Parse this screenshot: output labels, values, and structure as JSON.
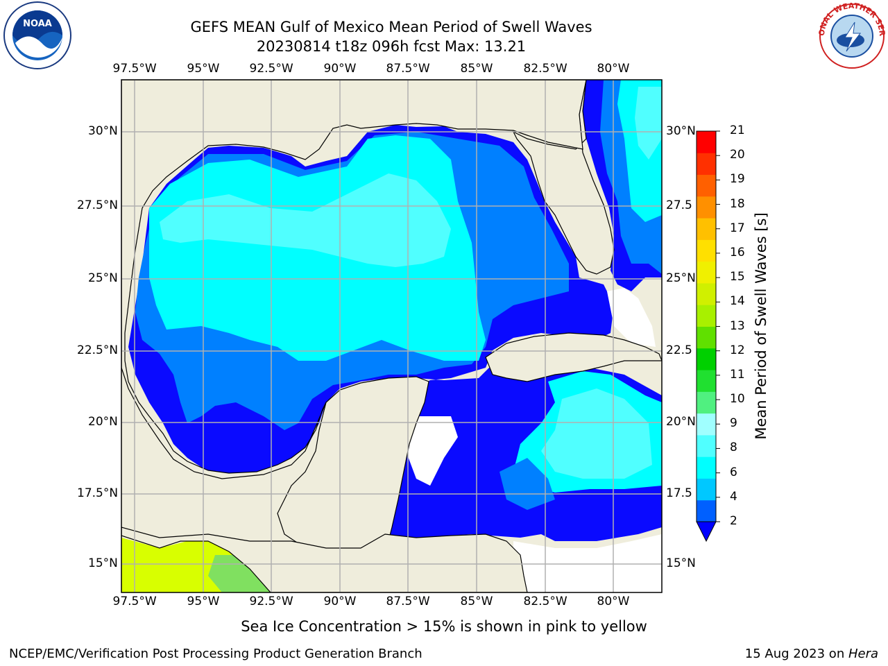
{
  "title": {
    "line1": "GEFS MEAN Gulf of Mexico Mean Period of Swell Waves",
    "line2": "20230814 t18z 096h fcst   Max: 13.21"
  },
  "logos": {
    "left": "noaa-logo",
    "right": "nws-logo",
    "nws_text": "NATIONAL WEATHER SERVICE"
  },
  "axes": {
    "lon_labels": [
      "97.5°W",
      "95°W",
      "92.5°W",
      "90°W",
      "87.5°W",
      "85°W",
      "82.5°W",
      "80°W"
    ],
    "lat_labels_left": [
      "30°N",
      "27.5°N",
      "25°N",
      "22.5°N",
      "20°N",
      "17.5°N",
      "15°N"
    ],
    "lat_labels_right": [
      "30°N",
      "27.5",
      "25°N",
      "22.5",
      "20°N",
      "17.5",
      "15°N"
    ]
  },
  "colorbar": {
    "label": "Mean Period of Swell Waves [s]",
    "ticks": [
      "2",
      "4",
      "6",
      "8",
      "9",
      "10",
      "11",
      "12",
      "13",
      "14",
      "15",
      "16",
      "17",
      "18",
      "19",
      "20",
      "21"
    ],
    "colors": [
      "#0060ff",
      "#00c8ff",
      "#00ffff",
      "#50ffff",
      "#a0ffff",
      "#50f080",
      "#20e030",
      "#00d000",
      "#60e000",
      "#a8f000",
      "#d0f000",
      "#f0f000",
      "#ffe000",
      "#ffc000",
      "#ff9000",
      "#ff6000",
      "#ff3000",
      "#ff0000"
    ],
    "under_color": "#0000ff"
  },
  "map_colors": {
    "land": "#efeddc",
    "deep_blue": "#0a0aff",
    "mid_blue": "#0080ff",
    "cyan": "#00ffff",
    "light_cyan": "#50ffff",
    "yellow_green": "#d8ff00",
    "green": "#80e060"
  },
  "footer": {
    "subtitle": "Sea Ice Concentration > 15% is shown in pink to yellow",
    "credit_left": "NCEP/EMC/Verification Post Processing Product Generation Branch",
    "credit_date": "15 Aug 2023 on ",
    "credit_host": "Hera"
  }
}
